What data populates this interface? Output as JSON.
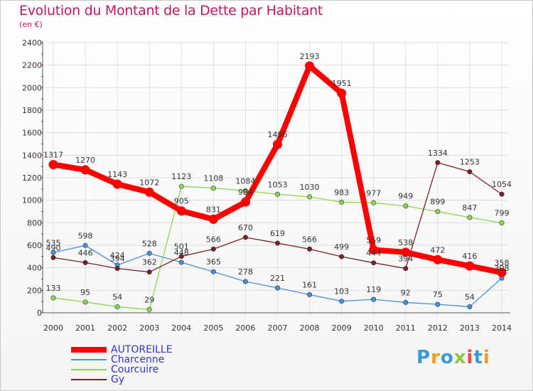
{
  "chart_data": {
    "type": "line",
    "title": "Evolution du Montant de la Dette par Habitant",
    "subtitle": "(en €)",
    "categories": [
      "2000",
      "2001",
      "2002",
      "2003",
      "2004",
      "2005",
      "2006",
      "2007",
      "2008",
      "2009",
      "2010",
      "2011",
      "2012",
      "2013",
      "2014"
    ],
    "ylim": [
      0,
      2400
    ],
    "yticks": [
      0,
      200,
      400,
      600,
      800,
      1000,
      1200,
      1400,
      1600,
      1800,
      2000,
      2200,
      2400
    ],
    "grid": true,
    "legend_position": "bottom-left",
    "series": [
      {
        "name": "AUTOREILLE",
        "color": "#ff0000",
        "values": [
          1317,
          1270,
          1143,
          1072,
          905,
          831,
          984,
          1496,
          2193,
          1951,
          559,
          538,
          472,
          416,
          358
        ]
      },
      {
        "name": "Charcenne",
        "color": "#4a90d9",
        "values": [
          535,
          598,
          424,
          528,
          448,
          365,
          278,
          221,
          161,
          103,
          119,
          92,
          75,
          54,
          308
        ]
      },
      {
        "name": "Courcuire",
        "color": "#8cd650",
        "values": [
          133,
          95,
          54,
          29,
          1123,
          1108,
          1084,
          1053,
          1030,
          983,
          977,
          949,
          899,
          847,
          799
        ]
      },
      {
        "name": "Gy",
        "color": "#7a1f2b",
        "values": [
          490,
          446,
          394,
          362,
          501,
          566,
          670,
          619,
          566,
          499,
          444,
          394,
          1334,
          1253,
          1054
        ]
      }
    ],
    "data_labels": {
      "AUTOREILLE": [
        "1317",
        "1270",
        "1143",
        "1072",
        "905",
        "831",
        "984",
        "1496",
        "2193",
        "1951",
        "559",
        "538",
        "472",
        "416",
        "358"
      ],
      "Charcenne": [
        "535",
        "598",
        "424",
        "528",
        "448",
        "365",
        "278",
        "221",
        "161",
        "103",
        "119",
        "92",
        "75",
        "54",
        "308"
      ],
      "Courcuire": [
        "133",
        "95",
        "54",
        "29",
        "1123",
        "1108",
        "1084",
        "1053",
        "1030",
        "983",
        "977",
        "949",
        "899",
        "847",
        "799"
      ],
      "Gy": [
        "490",
        "446",
        "394",
        "362",
        "501",
        "566",
        "670",
        "619",
        "566",
        "499",
        "444",
        "394",
        "1334",
        "1253",
        "1054"
      ]
    }
  },
  "logo": {
    "letters": [
      "P",
      "r",
      "o",
      "x",
      "i",
      "t",
      "i"
    ],
    "colors": [
      "#3a9ad9",
      "#f39c12",
      "#3a9ad9",
      "#8cc63f",
      "#e74c3c",
      "#3a9ad9",
      "#f39c12"
    ]
  }
}
